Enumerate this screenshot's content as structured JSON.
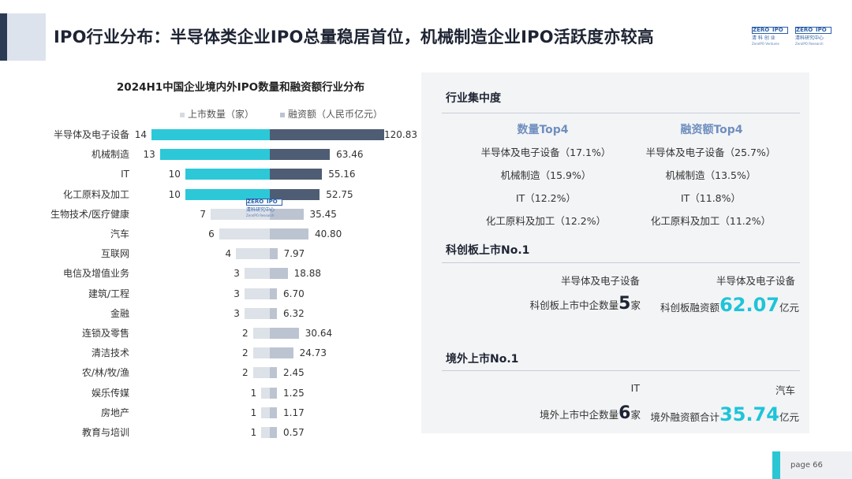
{
  "page_title": "IPO行业分布：半导体类企业IPO总量稳居首位，机械制造企业IPO活跃度亦较高",
  "logos": [
    {
      "zero": "ZERO",
      "ipo": "IPO",
      "sub": "清 科 创 业",
      "sub2": "ZeroIPO Ventures"
    },
    {
      "zero": "ZERO",
      "ipo": "IPO",
      "sub": "清科研究中心",
      "sub2": "ZeroIPO Research"
    }
  ],
  "chart_data": {
    "type": "bar",
    "title": "2024H1中国企业境内外IPO数量和融资额行业分布",
    "legend": [
      "上市数量（家）",
      "融资额（人民币亿元）"
    ],
    "categories": [
      "半导体及电子设备",
      "机械制造",
      "IT",
      "化工原料及加工",
      "生物技术/医疗健康",
      "汽车",
      "互联网",
      "电信及增值业务",
      "建筑/工程",
      "金融",
      "连锁及零售",
      "清洁技术",
      "农/林/牧/渔",
      "娱乐传媒",
      "房地产",
      "教育与培训"
    ],
    "series": [
      {
        "name": "上市数量（家）",
        "values": [
          14,
          13,
          10,
          10,
          7,
          6,
          4,
          3,
          3,
          3,
          2,
          2,
          2,
          1,
          1,
          1
        ]
      },
      {
        "name": "融资额（人民币亿元）",
        "values": [
          120.83,
          63.46,
          55.16,
          52.75,
          35.45,
          40.8,
          7.97,
          18.88,
          6.7,
          6.32,
          30.64,
          24.73,
          2.45,
          1.25,
          1.17,
          0.57
        ]
      }
    ],
    "value_labels": {
      "count": [
        "14",
        "13",
        "10",
        "10",
        "7",
        "6",
        "4",
        "3",
        "3",
        "3",
        "2",
        "2",
        "2",
        "1",
        "1",
        "1"
      ],
      "amount": [
        "120.83",
        "63.46",
        "55.16",
        "52.75",
        "35.45",
        "40.80",
        "7.97",
        "18.88",
        "6.70",
        "6.32",
        "30.64",
        "24.73",
        "2.45",
        "1.25",
        "1.17",
        "0.57"
      ]
    },
    "highlight_rows": 4,
    "colors": {
      "count_top": "#2cc8d8",
      "amount_top": "#4e5d73",
      "count_rest": "#dde1e8",
      "amount_rest": "#bcc4d1"
    }
  },
  "watermark": {
    "zero": "ZERO",
    "ipo": "IPO",
    "sub": "清科研究中心",
    "sub2": "ZeroIPO Research"
  },
  "concentration": {
    "title": "行业集中度",
    "count_head": "数量Top4",
    "amount_head": "融资额Top4",
    "count_items": [
      "半导体及电子设备（17.1%）",
      "机械制造（15.9%）",
      "IT（12.2%）",
      "化工原料及加工（12.2%）"
    ],
    "amount_items": [
      "半导体及电子设备（25.7%）",
      "机械制造（13.5%）",
      "IT（11.8%）",
      "化工原料及加工（11.2%）"
    ]
  },
  "star_market": {
    "title": "科创板上市No.1",
    "count_industry": "半导体及电子设备",
    "amount_industry": "半导体及电子设备",
    "count_prefix": "科创板上市中企数量",
    "count_value": "5",
    "count_unit": "家",
    "amount_prefix": "科创板融资额",
    "amount_value": "62.07",
    "amount_unit": "亿元"
  },
  "overseas": {
    "title": "境外上市No.1",
    "count_industry": "IT",
    "amount_industry": "汽车",
    "count_prefix": "境外上市中企数量",
    "count_value": "6",
    "count_unit": "家",
    "amount_prefix": "境外融资额合计",
    "amount_value": "35.74",
    "amount_unit": "亿元"
  },
  "page": "page  66",
  "colors": {
    "accent": "#2cc8d8",
    "navy": "#2b3a55",
    "panel": "#f3f4f6",
    "head_blue": "#6f8fbf"
  }
}
